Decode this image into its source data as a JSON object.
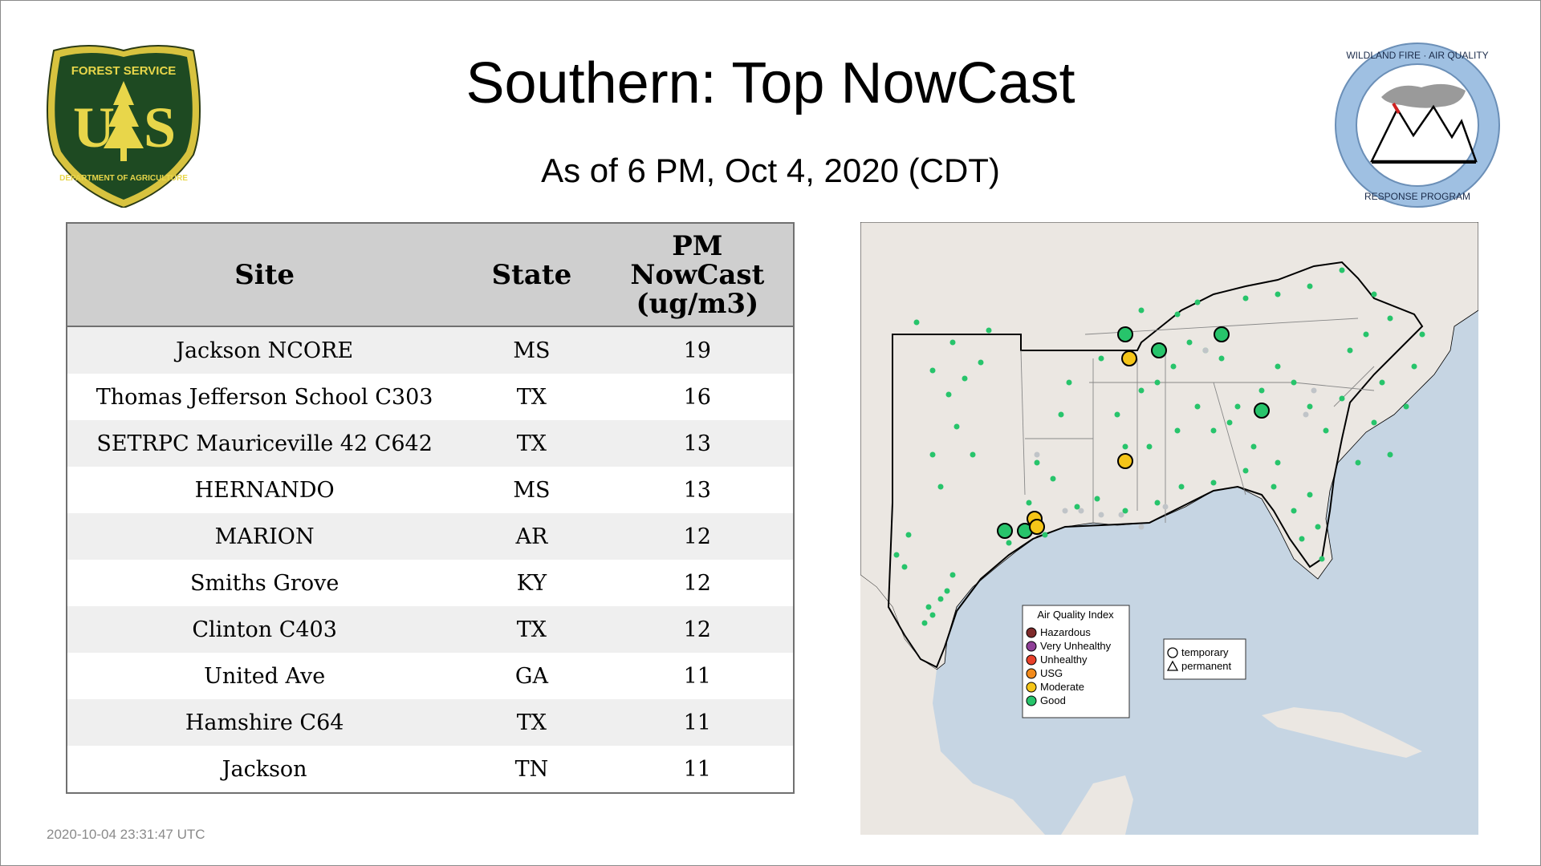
{
  "header": {
    "title": "Southern: Top NowCast",
    "subtitle": "As of  6 PM, Oct  4, 2020 (CDT)"
  },
  "logos": {
    "usfs": {
      "top": "FOREST SERVICE",
      "letters_left": "U",
      "letters_right": "S",
      "bottom": "DEPARTMENT OF AGRICULTURE"
    },
    "wildland": {
      "top": "WILDLAND FIRE · AIR QUALITY",
      "bottom": "RESPONSE PROGRAM"
    }
  },
  "table": {
    "headers": {
      "site": "Site",
      "state": "State",
      "pm1": "PM",
      "pm2": "NowCast",
      "pm3": "(ug/m3)"
    },
    "rows": [
      {
        "site": "Jackson NCORE",
        "state": "MS",
        "value": "19"
      },
      {
        "site": "Thomas Jefferson School C303",
        "state": "TX",
        "value": "16"
      },
      {
        "site": "SETRPC Mauriceville 42 C642",
        "state": "TX",
        "value": "13"
      },
      {
        "site": "HERNANDO",
        "state": "MS",
        "value": "13"
      },
      {
        "site": "MARION",
        "state": "AR",
        "value": "12"
      },
      {
        "site": "Smiths Grove",
        "state": "KY",
        "value": "12"
      },
      {
        "site": "Clinton C403",
        "state": "TX",
        "value": "12"
      },
      {
        "site": "United Ave",
        "state": "GA",
        "value": "11"
      },
      {
        "site": "Hamshire C64",
        "state": "TX",
        "value": "11"
      },
      {
        "site": "Jackson",
        "state": "TN",
        "value": "11"
      }
    ]
  },
  "map": {
    "legend": {
      "title": "Air Quality Index",
      "items": [
        {
          "label": "Hazardous",
          "color": "#7e2a2a"
        },
        {
          "label": "Very Unhealthy",
          "color": "#8f3f97"
        },
        {
          "label": "Unhealthy",
          "color": "#e8412b"
        },
        {
          "label": "USG",
          "color": "#f28a1b"
        },
        {
          "label": "Moderate",
          "color": "#f5c518"
        },
        {
          "label": "Good",
          "color": "#27c46b"
        }
      ]
    },
    "shape_legend": {
      "temporary": "temporary",
      "permanent": "permanent"
    }
  },
  "footer": {
    "timestamp": "2020-10-04 23:31:47 UTC"
  }
}
